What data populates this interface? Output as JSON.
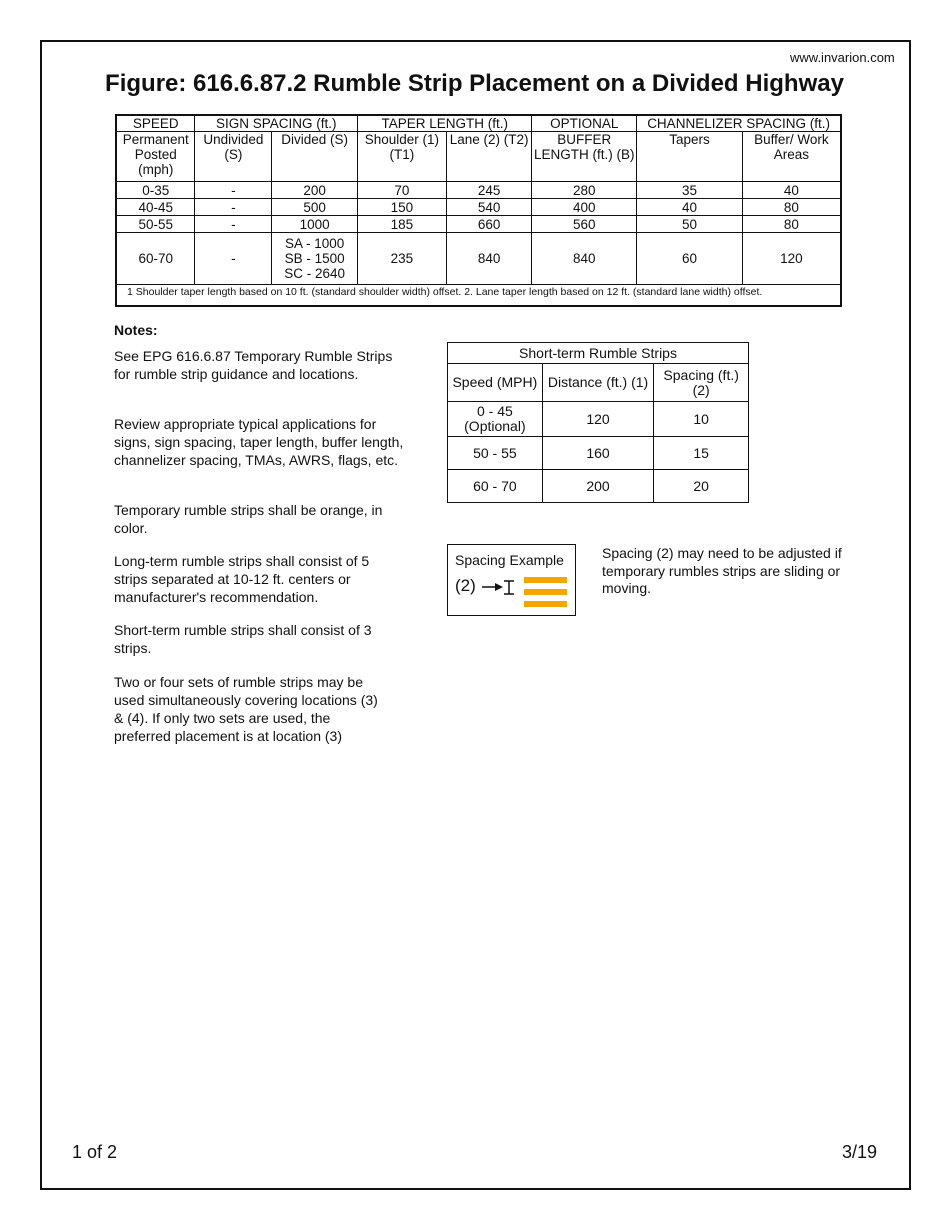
{
  "site": "www.invarion.com",
  "title": "Figure: 616.6.87.2 Rumble Strip Placement on a Divided Highway",
  "main_table": {
    "group_headers": [
      "SPEED",
      "SIGN SPACING (ft.)",
      "TAPER LENGTH (ft.)",
      "OPTIONAL",
      "CHANNELIZER SPACING (ft.)"
    ],
    "sub_headers": [
      "Permanent Posted (mph)",
      "Undivided (S)",
      "Divided (S)",
      "Shoulder (1) (T1)",
      "Lane (2) (T2)",
      "BUFFER LENGTH (ft.) (B)",
      "Tapers",
      "Buffer/ Work Areas"
    ],
    "rows": [
      [
        "0-35",
        "-",
        "200",
        "70",
        "245",
        "280",
        "35",
        "40"
      ],
      [
        "40-45",
        "-",
        "500",
        "150",
        "540",
        "400",
        "40",
        "80"
      ],
      [
        "50-55",
        "-",
        "1000",
        "185",
        "660",
        "560",
        "50",
        "80"
      ],
      [
        "60-70",
        "-",
        "SA - 1000\nSB - 1500\nSC - 2640",
        "235",
        "840",
        "840",
        "60",
        "120"
      ]
    ],
    "footnote": "1 Shoulder taper length based on 10 ft. (standard shoulder width) offset.    2. Lane taper length based on 12 ft. (standard lane width) offset."
  },
  "notes": {
    "heading": "Notes:",
    "items": [
      "See EPG 616.6.87 Temporary Rumble Strips for rumble strip guidance and locations.",
      "Review appropriate typical applications for signs, sign spacing, taper length, buffer length, channelizer spacing, TMAs, AWRS, flags, etc.",
      "Temporary rumble strips shall be orange, in color.",
      "Long-term rumble strips shall consist of 5 strips separated at 10-12 ft. centers or manufacturer's recommendation.",
      "Short-term rumble strips shall consist of 3 strips.",
      "Two or four sets of rumble strips may be used simultaneously covering locations (3) & (4).  If only two sets are used, the preferred placement is at location (3)"
    ]
  },
  "short_table": {
    "title": "Short-term Rumble Strips",
    "headers": [
      "Speed (MPH)",
      "Distance (ft.) (1)",
      "Spacing (ft.) (2)"
    ],
    "rows": [
      [
        "0 - 45\n(Optional)",
        "120",
        "10"
      ],
      [
        "50 - 55",
        "160",
        "15"
      ],
      [
        "60 - 70",
        "200",
        "20"
      ]
    ]
  },
  "spacing_example": {
    "label": "Spacing Example",
    "marker": "(2)",
    "strip_color": "#f5a500"
  },
  "spacing_note": "Spacing (2) may need to be adjusted if temporary rumbles strips are sliding or moving.",
  "footer": {
    "page": "1 of 2",
    "date": "3/19"
  }
}
